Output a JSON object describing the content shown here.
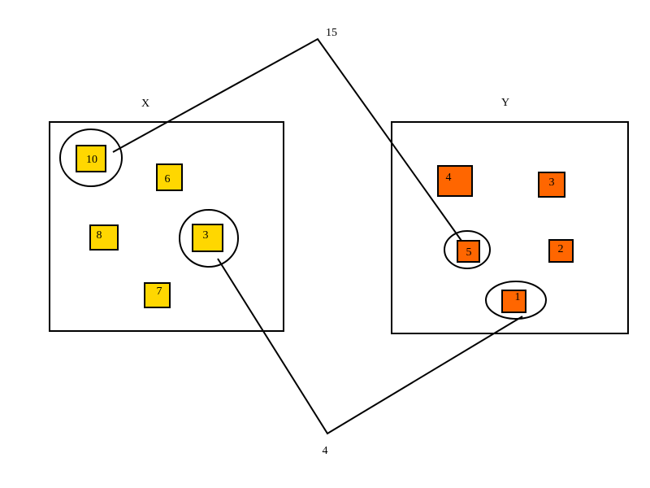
{
  "diagram": {
    "sets": {
      "x": {
        "label": "X",
        "color": "#ffd700",
        "items": [
          "10",
          "6",
          "8",
          "3",
          "7"
        ],
        "circled": [
          "10",
          "3"
        ]
      },
      "y": {
        "label": "Y",
        "color": "#ff6600",
        "items": [
          "4",
          "3",
          "5",
          "2",
          "1"
        ],
        "circled": [
          "5",
          "1"
        ]
      }
    },
    "connectors": {
      "top": {
        "label": "15",
        "joins": [
          "X: 10",
          "Y: 5"
        ]
      },
      "bottom": {
        "label": "4",
        "joins": [
          "X: 3",
          "Y: 1"
        ]
      }
    }
  }
}
